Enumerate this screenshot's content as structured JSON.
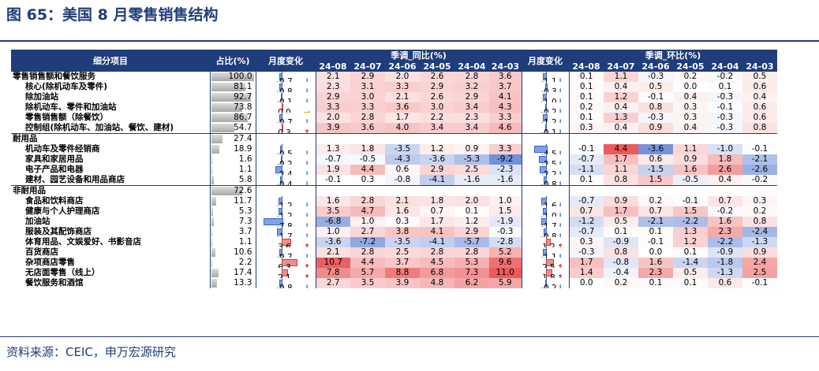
{
  "page_title": "图 65：美国 8 月零售销售结构",
  "source_note": "资料来源：CEIC，申万宏源研究",
  "headers": {
    "item": "细分项目",
    "share": "占比(%)",
    "mom_change": "月度变化",
    "yoy_group": "季调_同比(%)",
    "mom_group": "季调_环比(%)",
    "months": [
      "24-08",
      "24-07",
      "24-06",
      "24-05",
      "24-04",
      "24-03"
    ]
  },
  "colors": {
    "header_bg": "#1f3d7a",
    "pos": "#e83e3e",
    "neg": "#3a64c8",
    "up_arrow": "#e02020",
    "down_arrow": "#2e5fc4",
    "flat_arrow": "#f0a000"
  },
  "chart_data": {
    "type": "table",
    "share_max": 100,
    "yoy_change_max": 7.8,
    "mom_change_max": 4.5,
    "rows": [
      {
        "name": "零售销售额和餐饮服务",
        "level": 0,
        "group_start": false,
        "share": "100.0",
        "yoy_chg": "-0.7",
        "yoy_dir": "down",
        "yoy": [
          "2.1",
          "2.9",
          "2.0",
          "2.6",
          "2.8",
          "3.6"
        ],
        "mom_chg": "-1.1",
        "mom_dir": "down",
        "mom": [
          "0.1",
          "1.1",
          "-0.3",
          "0.2",
          "-0.2",
          "0.5"
        ]
      },
      {
        "name": "核心(除机动车及零件)",
        "level": 1,
        "group_start": false,
        "share": "81.1",
        "yoy_chg": "-0.8",
        "yoy_dir": "down",
        "yoy": [
          "2.3",
          "3.1",
          "3.3",
          "2.9",
          "3.2",
          "3.7"
        ],
        "mom_chg": "-0.3",
        "mom_dir": "down",
        "mom": [
          "0.1",
          "0.4",
          "0.5",
          "0.0",
          "0.1",
          "0.6"
        ]
      },
      {
        "name": "除加油站",
        "level": 1,
        "group_start": false,
        "share": "92.7",
        "yoy_chg": "-0.1",
        "yoy_dir": "down",
        "yoy": [
          "2.9",
          "3.0",
          "2.1",
          "2.6",
          "2.9",
          "4.1"
        ],
        "mom_chg": "-1.0",
        "mom_dir": "down",
        "mom": [
          "0.1",
          "1.2",
          "-0.1",
          "0.4",
          "-0.3",
          "0.4"
        ]
      },
      {
        "name": "除机动车、零件和加油站",
        "level": 1,
        "group_start": false,
        "share": "73.8",
        "yoy_chg": "0.0",
        "yoy_dir": "flat",
        "yoy": [
          "3.3",
          "3.3",
          "3.6",
          "3.0",
          "3.4",
          "4.3"
        ],
        "mom_chg": "-0.2",
        "mom_dir": "down",
        "mom": [
          "0.2",
          "0.4",
          "0.8",
          "0.3",
          "-0.1",
          "0.6"
        ]
      },
      {
        "name": "零售销售额（除餐饮）",
        "level": 1,
        "group_start": false,
        "share": "86.7",
        "yoy_chg": "-0.7",
        "yoy_dir": "down",
        "yoy": [
          "2.0",
          "2.8",
          "1.7",
          "2.2",
          "2.3",
          "3.3"
        ],
        "mom_chg": "-1.2",
        "mom_dir": "down",
        "mom": [
          "0.1",
          "1.3",
          "-0.3",
          "0.3",
          "-0.3",
          "0.6"
        ]
      },
      {
        "name": "控制组(除机动车、加油站、餐饮、建材)",
        "level": 1,
        "group_start": false,
        "share": "54.7",
        "yoy_chg": "0.3",
        "yoy_dir": "up",
        "yoy": [
          "3.9",
          "3.6",
          "4.0",
          "3.4",
          "3.4",
          "4.6"
        ],
        "mom_chg": "-0.1",
        "mom_dir": "down",
        "mom": [
          "0.3",
          "0.4",
          "0.9",
          "0.4",
          "-0.3",
          "0.8"
        ]
      },
      {
        "name": "耐用品",
        "level": 0,
        "group_start": true,
        "share": "27.4",
        "yoy_chg": "",
        "yoy_dir": "",
        "yoy": [
          "",
          "",
          "",
          "",
          "",
          ""
        ],
        "mom_chg": "",
        "mom_dir": "",
        "mom": [
          "",
          "",
          "",
          "",
          "",
          ""
        ]
      },
      {
        "name": "机动车及零件经销商",
        "level": 1,
        "group_start": false,
        "share": "18.9",
        "yoy_chg": "-0.5",
        "yoy_dir": "down",
        "yoy": [
          "1.3",
          "1.8",
          "-3.5",
          "1.2",
          "0.9",
          "3.3"
        ],
        "mom_chg": "-4.5",
        "mom_dir": "down",
        "mom": [
          "-0.1",
          "4.4",
          "-3.6",
          "1.1",
          "-1.0",
          "-0.1"
        ]
      },
      {
        "name": "家具和家居用品",
        "level": 1,
        "group_start": false,
        "share": "1.6",
        "yoy_chg": "-0.2",
        "yoy_dir": "down",
        "yoy": [
          "-0.7",
          "-0.5",
          "-4.3",
          "-3.6",
          "-5.3",
          "-9.2"
        ],
        "mom_chg": "-2.5",
        "mom_dir": "down",
        "mom": [
          "-0.7",
          "1.7",
          "0.6",
          "0.9",
          "1.8",
          "-2.1"
        ]
      },
      {
        "name": "电子产品和电器",
        "level": 1,
        "group_start": false,
        "share": "1.1",
        "yoy_chg": "-2.4",
        "yoy_dir": "down",
        "yoy": [
          "1.9",
          "4.4",
          "0.6",
          "2.9",
          "2.5",
          "-2.3"
        ],
        "mom_chg": "-2.2",
        "mom_dir": "down",
        "mom": [
          "-1.1",
          "1.1",
          "-1.5",
          "1.6",
          "2.6",
          "-2.6"
        ]
      },
      {
        "name": "建材、园艺设备和用品商店",
        "level": 1,
        "group_start": false,
        "share": "5.8",
        "yoy_chg": "-0.4",
        "yoy_dir": "down",
        "yoy": [
          "-0.1",
          "0.3",
          "-0.8",
          "-4.1",
          "-1.6",
          "-1.6"
        ],
        "mom_chg": "-0.8",
        "mom_dir": "down",
        "mom": [
          "0.1",
          "0.8",
          "1.5",
          "-0.5",
          "0.4",
          "-0.2"
        ]
      },
      {
        "name": "非耐用品",
        "level": 0,
        "group_start": true,
        "share": "72.6",
        "yoy_chg": "",
        "yoy_dir": "",
        "yoy": [
          "",
          "",
          "",
          "",
          "",
          ""
        ],
        "mom_chg": "",
        "mom_dir": "",
        "mom": [
          "",
          "",
          "",
          "",
          "",
          ""
        ]
      },
      {
        "name": "食品和饮料商店",
        "level": 1,
        "group_start": false,
        "share": "11.7",
        "yoy_chg": "-1.2",
        "yoy_dir": "down",
        "yoy": [
          "1.6",
          "2.8",
          "2.1",
          "1.8",
          "2.0",
          "1.0"
        ],
        "mom_chg": "-1.6",
        "mom_dir": "down",
        "mom": [
          "-0.7",
          "0.9",
          "0.2",
          "-0.1",
          "0.7",
          "0.3"
        ]
      },
      {
        "name": "健康与个人护理商店",
        "level": 1,
        "group_start": false,
        "share": "5.3",
        "yoy_chg": "-1.2",
        "yoy_dir": "down",
        "yoy": [
          "3.5",
          "4.7",
          "1.6",
          "0.7",
          "0.1",
          "1.5"
        ],
        "mom_chg": "-1.0",
        "mom_dir": "down",
        "mom": [
          "0.7",
          "1.7",
          "0.7",
          "1.5",
          "-0.2",
          "0.2"
        ]
      },
      {
        "name": "加油站",
        "level": 1,
        "group_start": false,
        "share": "7.3",
        "yoy_chg": "-7.8",
        "yoy_dir": "down",
        "yoy": [
          "-6.8",
          "1.0",
          "0.3",
          "1.7",
          "1.2",
          "-1.9"
        ],
        "mom_chg": "-1.7",
        "mom_dir": "down",
        "mom": [
          "-1.2",
          "0.5",
          "-2.1",
          "-2.2",
          "1.6",
          "0.8"
        ]
      },
      {
        "name": "服装及其配饰商店",
        "level": 1,
        "group_start": false,
        "share": "3.7",
        "yoy_chg": "-1.7",
        "yoy_dir": "down",
        "yoy": [
          "1.0",
          "2.7",
          "3.8",
          "4.1",
          "2.9",
          "-0.3"
        ],
        "mom_chg": "-0.8",
        "mom_dir": "down",
        "mom": [
          "-0.7",
          "0.1",
          "0.1",
          "1.3",
          "2.3",
          "-2.4"
        ]
      },
      {
        "name": "体育用品、文娱爱好、书影音店",
        "level": 1,
        "group_start": false,
        "share": "1.1",
        "yoy_chg": "3.6",
        "yoy_dir": "up",
        "yoy": [
          "-3.6",
          "-7.2",
          "-3.5",
          "-4.1",
          "-5.7",
          "-2.8"
        ],
        "mom_chg": "1.2",
        "mom_dir": "up",
        "mom": [
          "0.3",
          "-0.9",
          "-0.1",
          "1.2",
          "-2.2",
          "-1.3"
        ]
      },
      {
        "name": "百货商店",
        "level": 1,
        "group_start": false,
        "share": "10.6",
        "yoy_chg": "-0.7",
        "yoy_dir": "down",
        "yoy": [
          "2.1",
          "2.8",
          "2.5",
          "2.8",
          "2.8",
          "5.2"
        ],
        "mom_chg": "-1.1",
        "mom_dir": "down",
        "mom": [
          "-0.3",
          "0.8",
          "0.0",
          "0.1",
          "-0.9",
          "0.9"
        ]
      },
      {
        "name": "杂项商店零售",
        "level": 1,
        "group_start": false,
        "share": "2.2",
        "yoy_chg": "6.3",
        "yoy_dir": "up",
        "yoy": [
          "10.7",
          "4.4",
          "3.7",
          "4.5",
          "5.3",
          "9.6"
        ],
        "mom_chg": "2.5",
        "mom_dir": "up",
        "mom": [
          "1.7",
          "-0.8",
          "1.6",
          "-1.4",
          "-1.8",
          "2.4"
        ]
      },
      {
        "name": "无店面零售（线上）",
        "level": 1,
        "group_start": false,
        "share": "17.4",
        "yoy_chg": "2.1",
        "yoy_dir": "up",
        "yoy": [
          "7.8",
          "5.7",
          "8.8",
          "6.8",
          "7.3",
          "11.0"
        ],
        "mom_chg": "1.8",
        "mom_dir": "up",
        "mom": [
          "1.4",
          "-0.4",
          "2.3",
          "0.5",
          "-1.3",
          "2.5"
        ]
      },
      {
        "name": "餐饮服务和酒馆",
        "level": 1,
        "group_start": false,
        "share": "13.3",
        "yoy_chg": "-0.8",
        "yoy_dir": "down",
        "yoy": [
          "2.7",
          "3.5",
          "3.9",
          "4.8",
          "6.2",
          "5.9"
        ],
        "mom_chg": "-0.2",
        "mom_dir": "down",
        "mom": [
          "0.0",
          "0.2",
          "0.1",
          "0.1",
          "0.6",
          "-0.1"
        ]
      }
    ]
  }
}
